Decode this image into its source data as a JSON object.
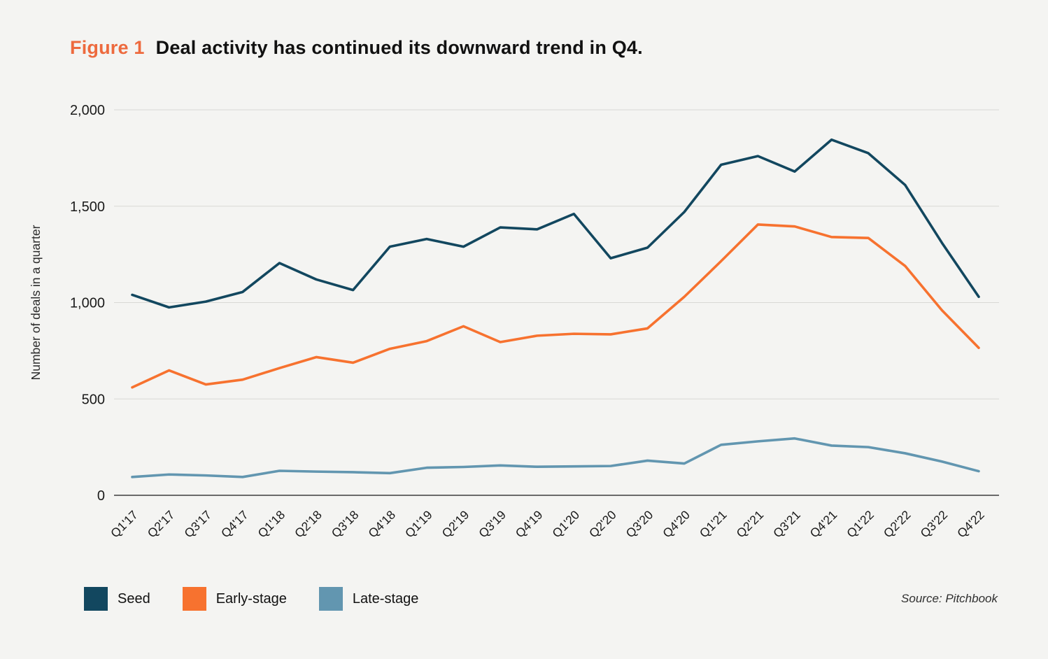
{
  "page": {
    "background": "#f4f4f2"
  },
  "header": {
    "figure_label": "Figure 1",
    "figure_label_color": "#ed6a3e",
    "title": "Deal activity has continued its downward trend in Q4."
  },
  "chart_data": {
    "type": "line",
    "figure_label": "Figure 1",
    "title": "Deal activity has continued its downward trend in Q4.",
    "xlabel": "",
    "ylabel": "Number of deals in a quarter",
    "ylim": [
      0,
      2000
    ],
    "grid": "horizontal",
    "grid_color": "#d8d8d5",
    "axis_line_color": "#3c3c3c",
    "legend_position": "bottom-left",
    "yticks": [
      {
        "value": 0,
        "label": "0"
      },
      {
        "value": 500,
        "label": "500"
      },
      {
        "value": 1000,
        "label": "1,000"
      },
      {
        "value": 1500,
        "label": "1,500"
      },
      {
        "value": 2000,
        "label": "2,000"
      }
    ],
    "categories": [
      "Q1'17",
      "Q2'17",
      "Q3'17",
      "Q4'17",
      "Q1'18",
      "Q2'18",
      "Q3'18",
      "Q4'18",
      "Q1'19",
      "Q2'19",
      "Q3'19",
      "Q4'19",
      "Q1'20",
      "Q2'20",
      "Q3'20",
      "Q4'20",
      "Q1'21",
      "Q2'21",
      "Q3'21",
      "Q4'21",
      "Q1'22",
      "Q2'22",
      "Q3'22",
      "Q4'22"
    ],
    "series": [
      {
        "name": "Seed",
        "color": "#12475f",
        "values": [
          1040,
          975,
          1005,
          1055,
          1205,
          1120,
          1065,
          1290,
          1330,
          1290,
          1390,
          1380,
          1460,
          1230,
          1285,
          1470,
          1715,
          1760,
          1680,
          1845,
          1775,
          1610,
          1310,
          1030
        ]
      },
      {
        "name": "Early-stage",
        "color": "#f7722f",
        "values": [
          560,
          648,
          575,
          600,
          660,
          717,
          688,
          760,
          800,
          877,
          795,
          828,
          838,
          835,
          866,
          1030,
          1215,
          1405,
          1395,
          1340,
          1335,
          1190,
          960,
          765
        ]
      },
      {
        "name": "Late-stage",
        "color": "#6296b0",
        "values": [
          95,
          108,
          103,
          95,
          127,
          123,
          120,
          115,
          143,
          147,
          155,
          148,
          150,
          152,
          180,
          165,
          262,
          280,
          295,
          258,
          250,
          218,
          175,
          125
        ]
      }
    ]
  },
  "source": {
    "text": "Source: Pitchbook"
  }
}
